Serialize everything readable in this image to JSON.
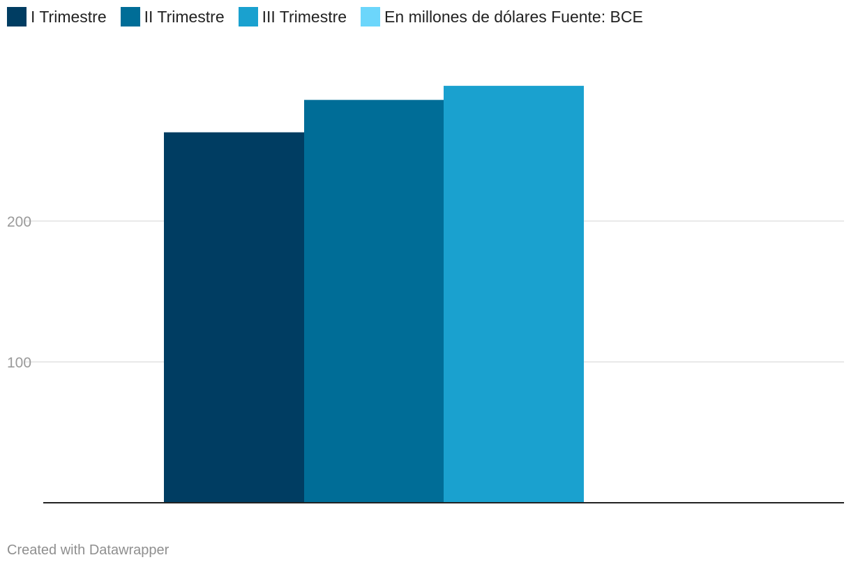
{
  "legend": {
    "items": [
      {
        "label": "I Trimestre",
        "color": "#003d62"
      },
      {
        "label": "II Trimestre",
        "color": "#006d97"
      },
      {
        "label": "III Trimestre",
        "color": "#1aa1cf"
      },
      {
        "label": "En millones de dólares Fuente: BCE",
        "color": "#6cd6fb"
      }
    ]
  },
  "chart_data": {
    "type": "bar",
    "categories": [
      ""
    ],
    "series": [
      {
        "name": "I Trimestre",
        "values": [
          263
        ],
        "color": "#003d62"
      },
      {
        "name": "II Trimestre",
        "values": [
          286
        ],
        "color": "#006d97"
      },
      {
        "name": "III Trimestre",
        "values": [
          296
        ],
        "color": "#1aa1cf"
      }
    ],
    "yticks": [
      100,
      200
    ],
    "ylim": [
      0,
      300
    ],
    "grid": true,
    "legend_position": "top-left"
  },
  "footer": {
    "credit": "Created with Datawrapper"
  }
}
